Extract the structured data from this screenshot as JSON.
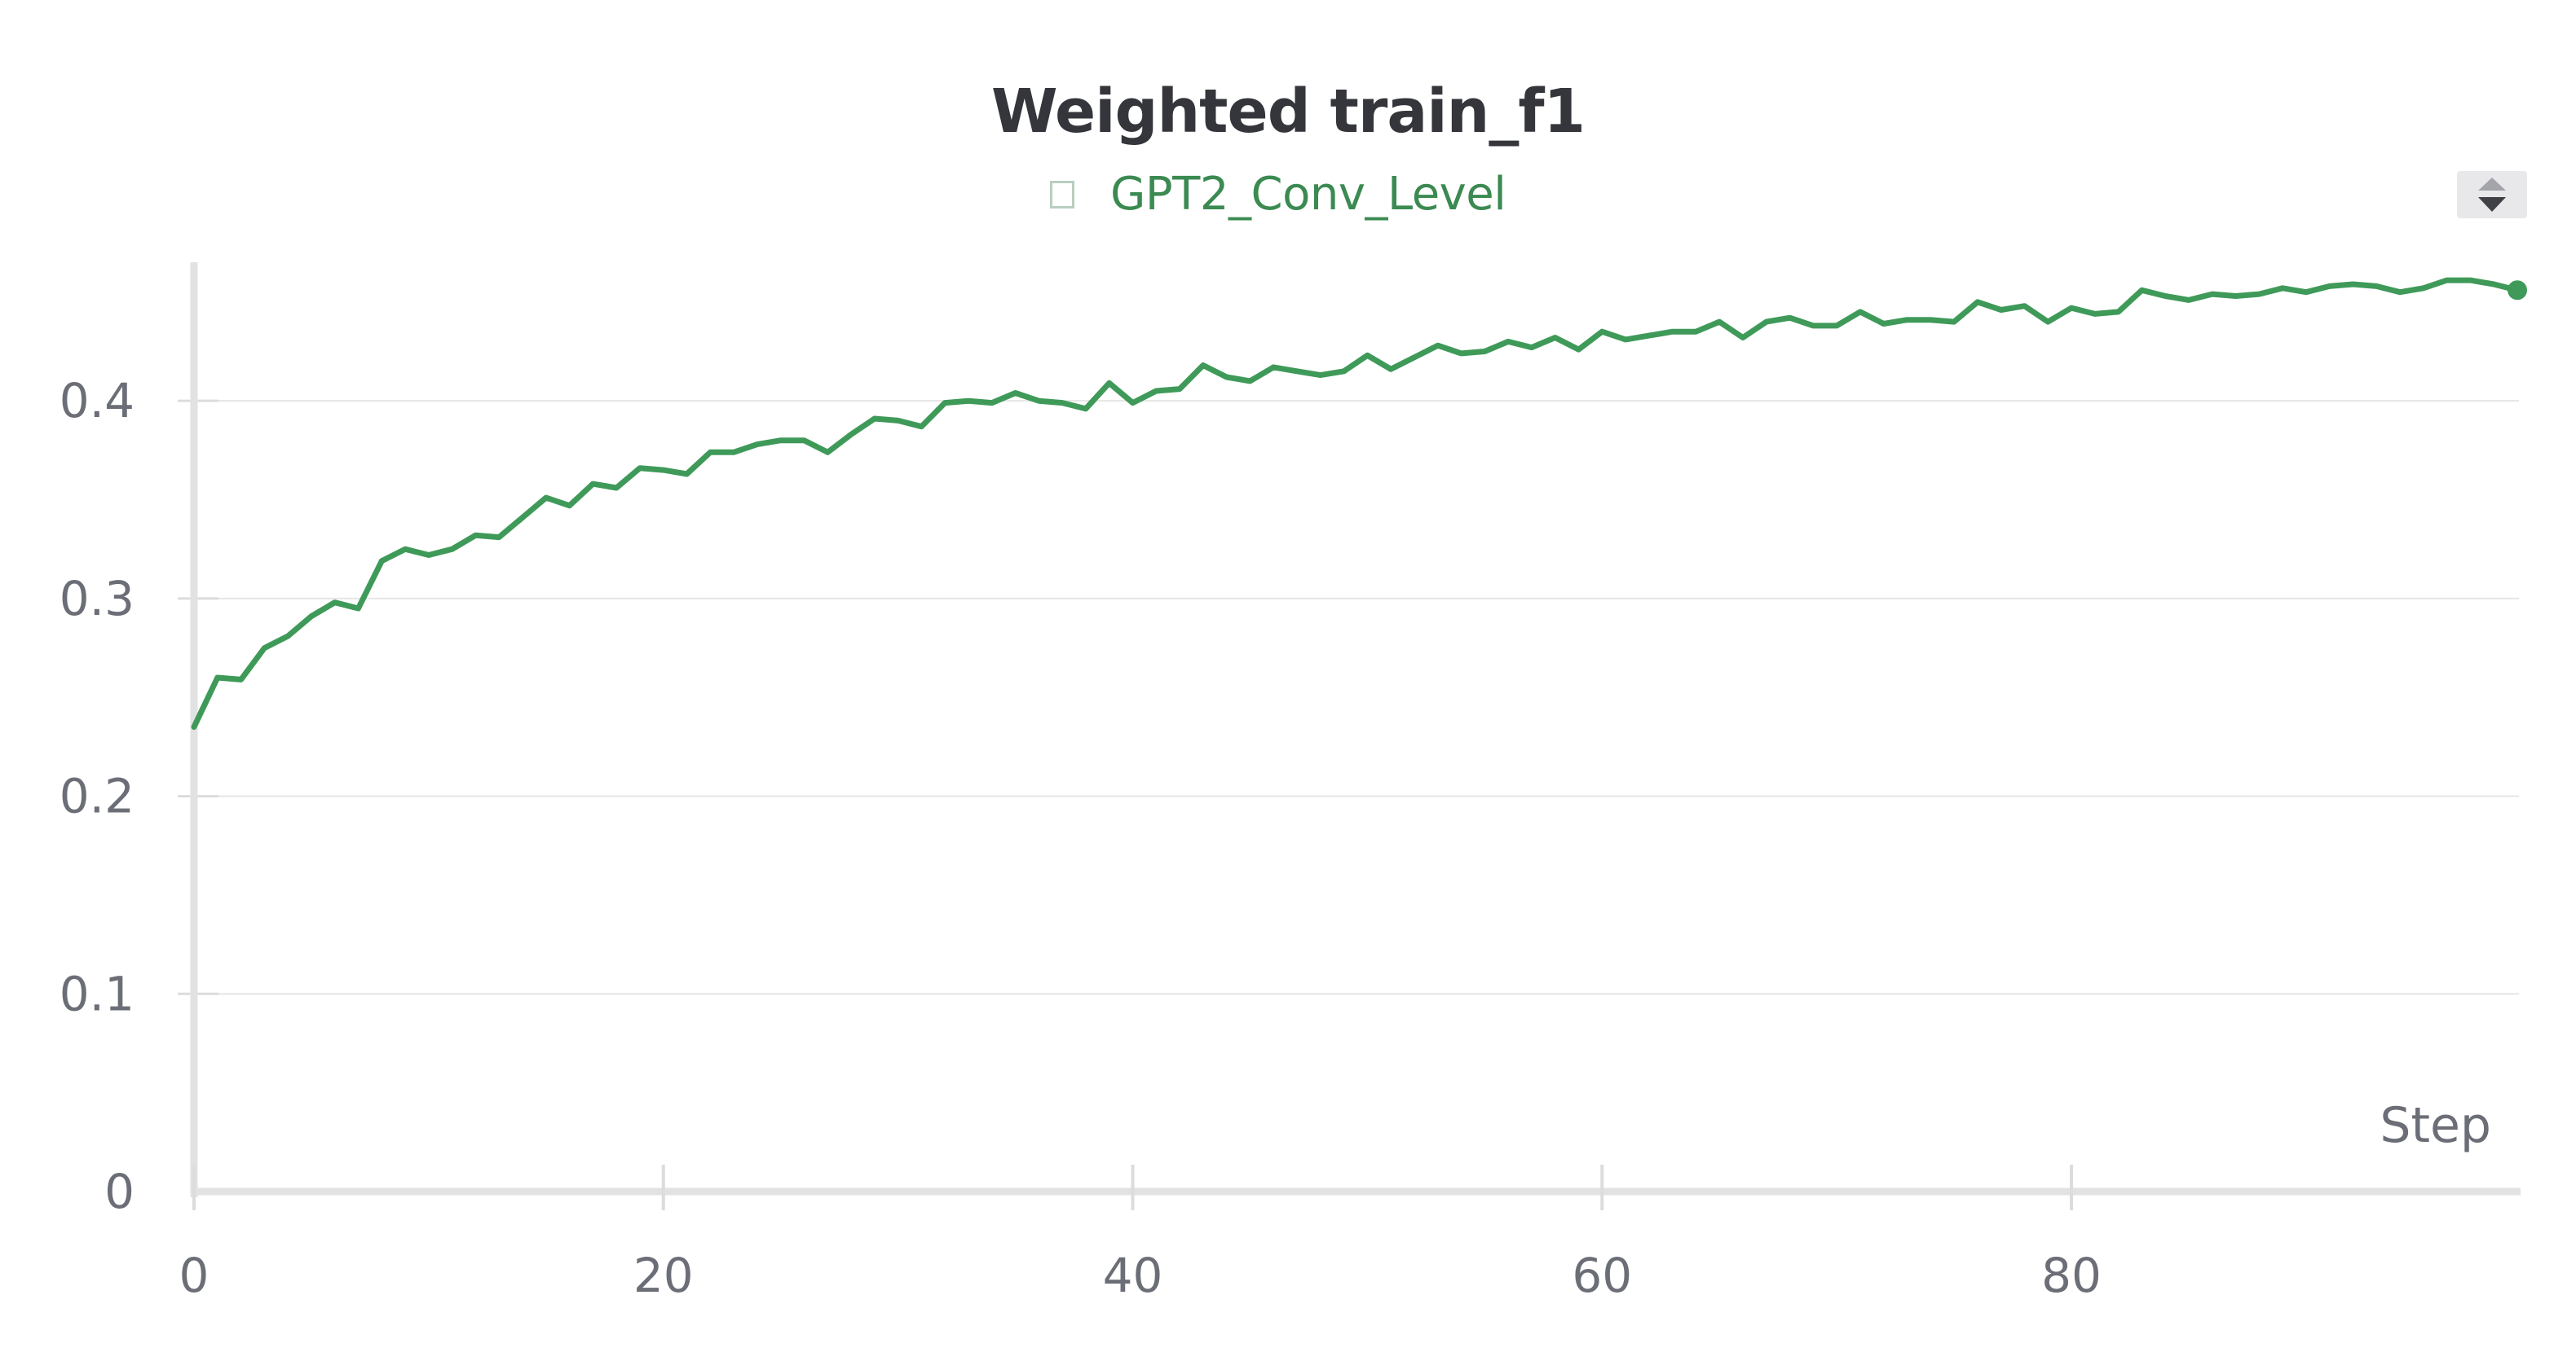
{
  "title": "Weighted train_f1",
  "legend": {
    "label": "GPT2_Conv_Level"
  },
  "colors": {
    "series": "#3f9a59",
    "grid": "#e6e6e6",
    "axis": "#e2e2e2",
    "text": "#6b6e76"
  },
  "icons": {
    "sort": "sort-arrows-icon"
  },
  "chart_data": {
    "type": "line",
    "title": "Weighted train_f1",
    "xlabel": "Step",
    "ylabel": "",
    "xlim": [
      0,
      99
    ],
    "ylim": [
      0,
      0.48
    ],
    "xticks": [
      0,
      20,
      40,
      60,
      80
    ],
    "yticks": [
      0,
      0.1,
      0.2,
      0.3,
      0.4
    ],
    "ytick_labels": [
      "0",
      "0.1",
      "0.2",
      "0.3",
      "0.4"
    ],
    "grid": true,
    "legend_position": "top-center",
    "series": [
      {
        "name": "GPT2_Conv_Level",
        "color": "#3f9a59",
        "x": [
          0,
          1,
          2,
          3,
          4,
          5,
          6,
          7,
          8,
          9,
          10,
          11,
          12,
          13,
          14,
          15,
          16,
          17,
          18,
          19,
          20,
          21,
          22,
          23,
          24,
          25,
          26,
          27,
          28,
          29,
          30,
          31,
          32,
          33,
          34,
          35,
          36,
          37,
          38,
          39,
          40,
          41,
          42,
          43,
          44,
          45,
          46,
          47,
          48,
          49,
          50,
          51,
          52,
          53,
          54,
          55,
          56,
          57,
          58,
          59,
          60,
          61,
          62,
          63,
          64,
          65,
          66,
          67,
          68,
          69,
          70,
          71,
          72,
          73,
          74,
          75,
          76,
          77,
          78,
          79,
          80,
          81,
          82,
          83,
          84,
          85,
          86,
          87,
          88,
          89,
          90,
          91,
          92,
          93,
          94,
          95,
          96,
          97,
          98,
          99
        ],
        "y": [
          0.235,
          0.26,
          0.259,
          0.275,
          0.281,
          0.291,
          0.298,
          0.295,
          0.319,
          0.325,
          0.322,
          0.325,
          0.332,
          0.331,
          0.341,
          0.351,
          0.347,
          0.358,
          0.356,
          0.366,
          0.365,
          0.363,
          0.374,
          0.374,
          0.378,
          0.38,
          0.38,
          0.374,
          0.383,
          0.391,
          0.39,
          0.387,
          0.399,
          0.4,
          0.399,
          0.404,
          0.4,
          0.399,
          0.396,
          0.409,
          0.399,
          0.405,
          0.406,
          0.418,
          0.412,
          0.41,
          0.417,
          0.415,
          0.413,
          0.415,
          0.423,
          0.416,
          0.422,
          0.428,
          0.424,
          0.425,
          0.43,
          0.427,
          0.432,
          0.426,
          0.435,
          0.431,
          0.433,
          0.435,
          0.435,
          0.44,
          0.432,
          0.44,
          0.442,
          0.438,
          0.438,
          0.445,
          0.439,
          0.441,
          0.441,
          0.44,
          0.45,
          0.446,
          0.448,
          0.44,
          0.447,
          0.444,
          0.445,
          0.456,
          0.453,
          0.451,
          0.454,
          0.453,
          0.454,
          0.457,
          0.455,
          0.458,
          0.459,
          0.458,
          0.455,
          0.457,
          0.461,
          0.461,
          0.459,
          0.456
        ]
      }
    ]
  }
}
